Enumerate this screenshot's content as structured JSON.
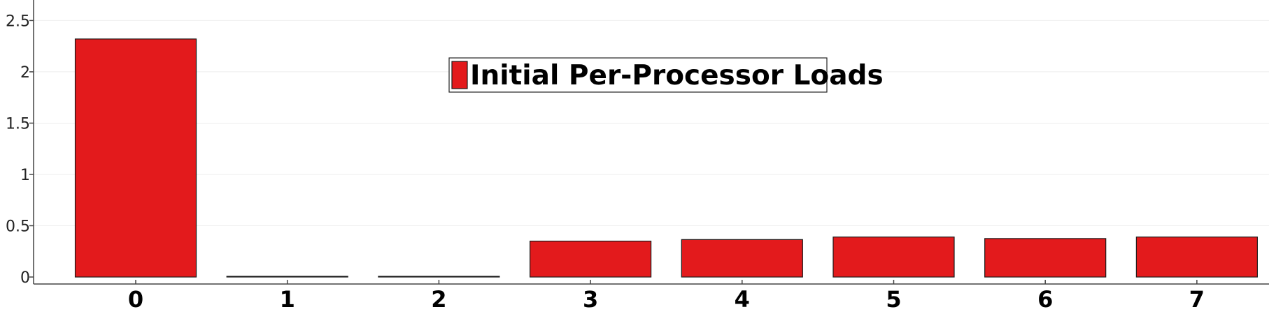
{
  "chart_data": {
    "type": "bar",
    "title": "",
    "xlabel": "",
    "ylabel": "",
    "categories": [
      "0",
      "1",
      "2",
      "3",
      "4",
      "5",
      "6",
      "7"
    ],
    "series": [
      {
        "name": "Initial Per-Processor Loads",
        "values": [
          2.32,
          0.005,
          0.005,
          0.35,
          0.365,
          0.39,
          0.375,
          0.39
        ]
      }
    ],
    "ylim": [
      0,
      2.7
    ],
    "yticks": [
      0,
      0.5,
      1,
      1.5,
      2,
      2.5
    ],
    "ytick_labels": [
      "0",
      "0.5",
      "1",
      "1.5",
      "2",
      "2.5"
    ],
    "grid": true,
    "legend_position": "top-center",
    "colors": {
      "bar_fill": "#e31a1c",
      "bar_stroke": "#1a1a1a",
      "grid": "#eeeeee",
      "axis": "#444444"
    }
  }
}
